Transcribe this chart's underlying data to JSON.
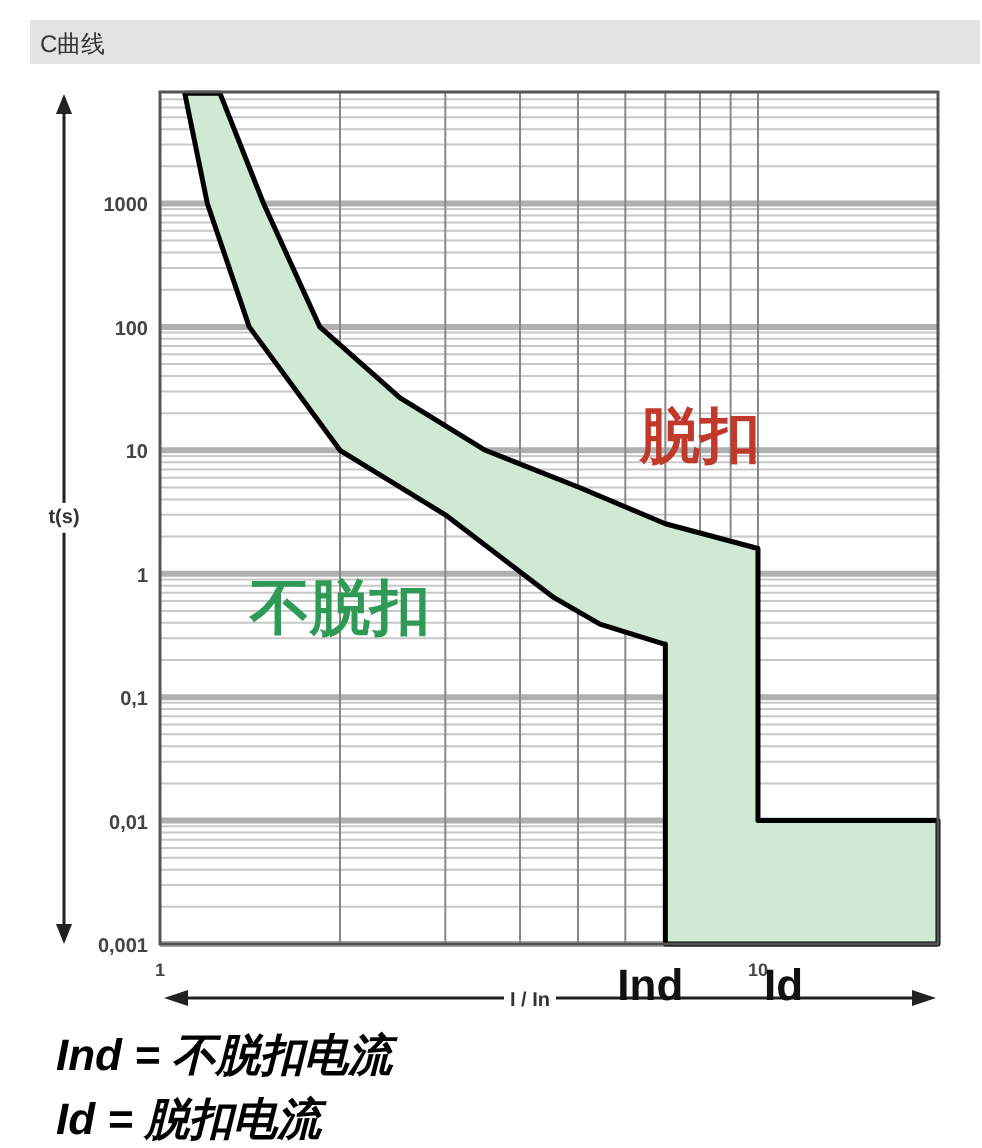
{
  "chart_data": {
    "type": "area",
    "title": "C曲线",
    "xlabel": "I / In",
    "ylabel": "t(s)",
    "log": "xy",
    "grid": true,
    "line_style": "solid",
    "xlim": [
      1,
      20
    ],
    "xticks": [
      1,
      10
    ],
    "ylim": [
      0.001,
      8000
    ],
    "yticks": [
      {
        "value": 0.001,
        "label": "0,001"
      },
      {
        "value": 0.01,
        "label": "0,01"
      },
      {
        "value": 0.1,
        "label": "0,1"
      },
      1,
      10,
      100,
      1000
    ],
    "series": [
      {
        "color": "#cfe9d5",
        "x": [
          1.1,
          1.26,
          1.49,
          1.85,
          2.52,
          3.5,
          5.04,
          7.0,
          10,
          10,
          20,
          20,
          7,
          7,
          6.95,
          5.44,
          4.56,
          3,
          2,
          1.41,
          1.2
        ],
        "values": [
          7800,
          7800,
          1000,
          100,
          26.6,
          10,
          4.97,
          2.54,
          1.6,
          0.01,
          0.01,
          0.001,
          0.001,
          0.27,
          0.27,
          0.39,
          0.64,
          3,
          10,
          100,
          1000
        ]
      }
    ],
    "annotations": [
      "脱扣",
      "不脱扣",
      {
        "text": "Ind",
        "x": 7
      },
      {
        "text": "Id",
        "x": 10
      },
      "**Ind =** *不脱扣电流*",
      "**Id =** *脱扣电流*"
    ]
  }
}
